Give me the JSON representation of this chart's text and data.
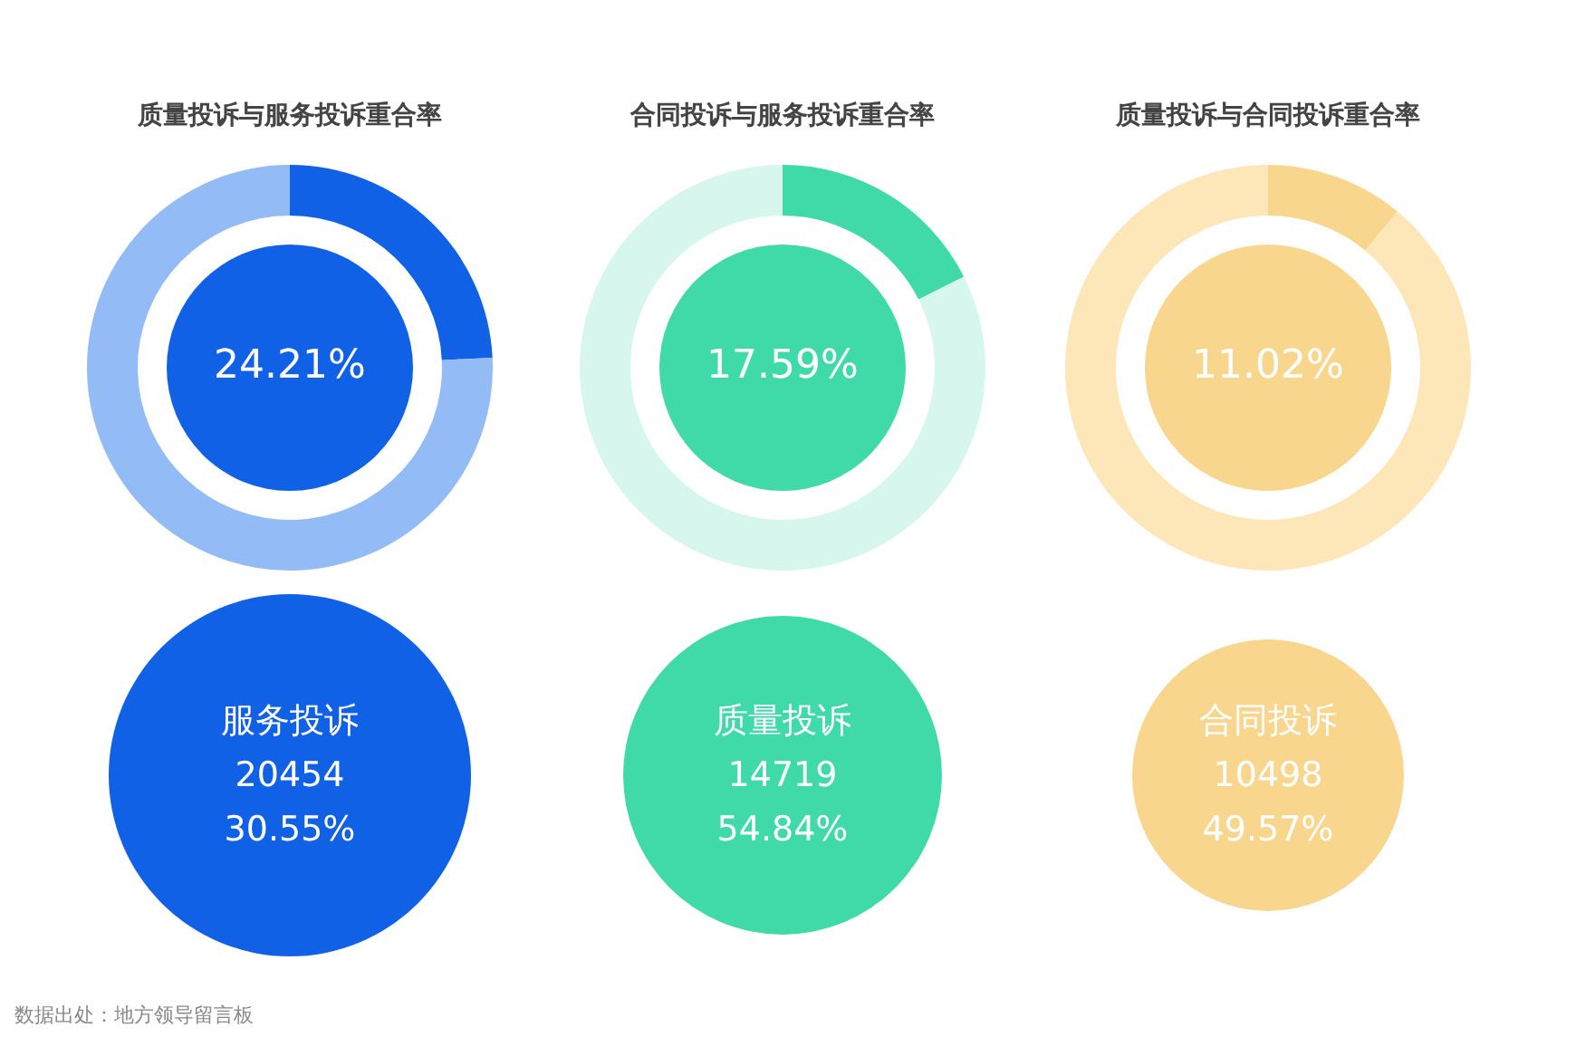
{
  "chart_data": [
    {
      "type": "donut",
      "title": "质量投诉与服务投诉重合率",
      "categories": [
        null,
        null
      ],
      "values": [
        24.21,
        75.79
      ],
      "colors": [
        "#1061e6",
        "#93bbf5"
      ],
      "annotations": [
        "24.21%"
      ]
    },
    {
      "type": "donut",
      "title": "合同投诉与服务投诉重合率",
      "categories": [
        null,
        null
      ],
      "values": [
        17.59,
        82.41
      ],
      "colors": [
        "#40d9a8",
        "#d7f6ed"
      ],
      "annotations": [
        "17.59%"
      ]
    },
    {
      "type": "donut",
      "title": "质量投诉与合同投诉重合率",
      "categories": [
        null,
        null
      ],
      "values": [
        11.02,
        88.98
      ],
      "colors": [
        "#f9d68d",
        "#fde6b8"
      ],
      "annotations": [
        "11.02%"
      ]
    },
    {
      "type": "other",
      "annotations": [
        "服务投诉",
        "20454",
        "30.55%"
      ],
      "color": "#1061e6"
    },
    {
      "type": "other",
      "annotations": [
        "质量投诉",
        "14719",
        "54.84%"
      ],
      "color": "#40d9a8"
    },
    {
      "type": "other",
      "annotations": [
        "合同投诉",
        "10498",
        "49.57%"
      ],
      "color": "#f9d68d"
    },
    {
      "type": "other",
      "annotations": [
        "数据出处：地方领导留言板"
      ]
    }
  ]
}
